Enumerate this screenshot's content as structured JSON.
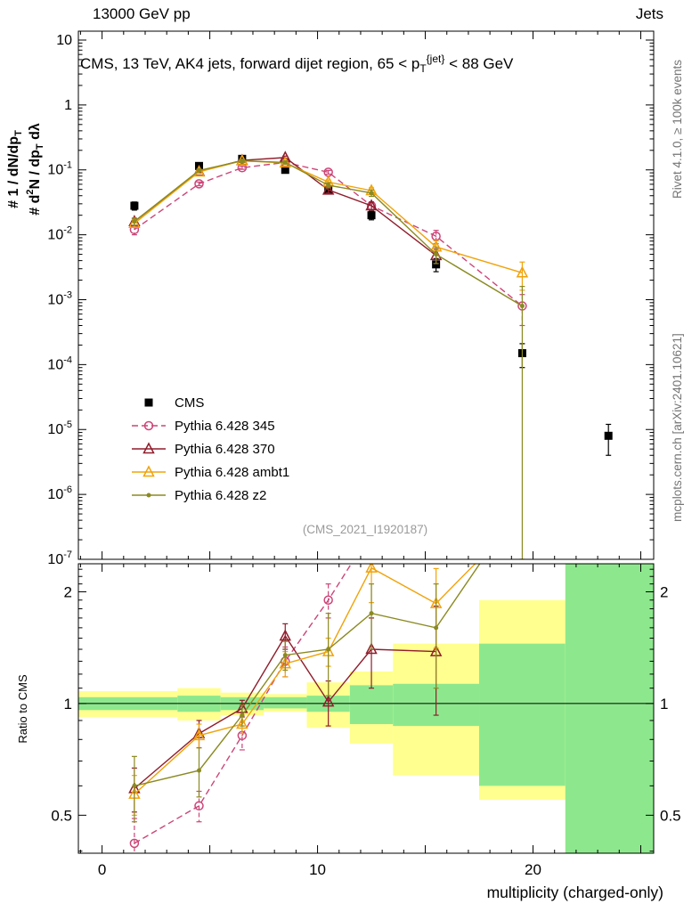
{
  "chart_data": {
    "type": "line",
    "header": {
      "left": "13000 GeV pp",
      "right": "Jets"
    },
    "title": [
      {
        "t": "CMS, 13 TeV, AK4 jets, forward dijet region, 65 < p"
      },
      {
        "t": "T",
        "style": "sub"
      },
      {
        "t": "{jet}",
        "style": "sup"
      },
      {
        "t": " < 88 GeV"
      }
    ],
    "watermark": "(CMS_2021_I1920187)",
    "side_labels": {
      "top_right": "Rivet 4.1.0, ≥ 100k events",
      "bottom_right": "mcplots.cern.ch [arXiv:2401.10621]"
    },
    "xlabel": "multiplicity (charged-only)",
    "ylabel_ratio": "Ratio to CMS",
    "ylabel_main": {
      "col1": [
        {
          "t": "# 1 / dN/dp"
        },
        {
          "t": "T",
          "style": "sub"
        }
      ],
      "col2": [
        {
          "t": "# d"
        },
        {
          "t": "2",
          "style": "sup"
        },
        {
          "t": "N / dp"
        },
        {
          "t": "T",
          "style": "sub"
        },
        {
          "t": " dλ"
        }
      ]
    },
    "xlim": [
      -1.1,
      25.6
    ],
    "x_major_ticks": [
      0,
      10,
      20
    ],
    "main": {
      "ylim_exp": [
        -7,
        1.137
      ],
      "series": [
        {
          "name": "CMS",
          "color": "#000000",
          "marker": "square",
          "filled": true,
          "line": "none",
          "x": [
            1.5,
            4.5,
            6.5,
            8.5,
            10.5,
            12.5,
            15.5,
            19.5,
            23.5
          ],
          "y": [
            0.028,
            0.115,
            0.148,
            0.1,
            0.048,
            0.02,
            0.0035,
            0.00015,
            8e-06
          ],
          "err": [
            0.004,
            0.01,
            0.012,
            0.008,
            0.005,
            0.003,
            0.0008,
            6e-05,
            4e-06
          ]
        },
        {
          "name": "Pythia 6.428 345",
          "color": "#cc4577",
          "marker": "circle",
          "filled": false,
          "line": "dash",
          "x": [
            1.5,
            4.5,
            6.5,
            8.5,
            10.5,
            12.5,
            15.5,
            19.5
          ],
          "y": [
            0.012,
            0.061,
            0.108,
            0.13,
            0.092,
            0.028,
            0.0095,
            0.0008
          ],
          "err": [
            0.002,
            0.004,
            0.006,
            0.007,
            0.006,
            0.004,
            0.0022,
            0.0004
          ]
        },
        {
          "name": "Pythia 6.428 370",
          "color": "#8f1d2c",
          "marker": "triangle",
          "filled": false,
          "line": "solid",
          "x": [
            1.5,
            4.5,
            6.5,
            8.5,
            10.5,
            12.5,
            15.5
          ],
          "y": [
            0.016,
            0.095,
            0.14,
            0.155,
            0.049,
            0.028,
            0.0048
          ],
          "err": [
            0.002,
            0.005,
            0.007,
            0.008,
            0.005,
            0.004,
            0.0012
          ]
        },
        {
          "name": "Pythia 6.428 ambt1",
          "color": "#f0a30a",
          "marker": "triangle",
          "filled": false,
          "line": "solid",
          "x": [
            1.5,
            4.5,
            6.5,
            8.5,
            10.5,
            12.5,
            15.5,
            19.5
          ],
          "y": [
            0.015,
            0.093,
            0.138,
            0.128,
            0.065,
            0.048,
            0.0065,
            0.0026
          ],
          "err": [
            0.002,
            0.005,
            0.007,
            0.007,
            0.005,
            0.005,
            0.0016,
            0.0012
          ]
        },
        {
          "name": "Pythia 6.428 z2",
          "color": "#8a8a22",
          "marker": "dot",
          "filled": true,
          "line": "solid",
          "x": [
            1.5,
            4.5,
            6.5,
            8.5,
            10.5,
            12.5,
            15.5,
            19.5
          ],
          "y": [
            0.016,
            0.098,
            0.138,
            0.13,
            0.058,
            0.044,
            0.005,
            0.0008
          ],
          "err": [
            0.002,
            0.005,
            0.007,
            0.007,
            0.005,
            0.005,
            0.0014,
            0.0007999
          ]
        }
      ]
    },
    "ratio": {
      "ylim": [
        0.395,
        2.38
      ],
      "y_major_ticks": [
        0.5,
        1,
        2
      ],
      "band_colors": {
        "yellow": "#ffff8f",
        "green": "#8de88d"
      },
      "bands": [
        {
          "x0": -1.1,
          "x1": 3.5,
          "yellow": [
            0.92,
            1.08
          ],
          "green": [
            0.96,
            1.04
          ]
        },
        {
          "x0": 3.5,
          "x1": 5.5,
          "yellow": [
            0.9,
            1.1
          ],
          "green": [
            0.95,
            1.05
          ]
        },
        {
          "x0": 5.5,
          "x1": 7.5,
          "yellow": [
            0.93,
            1.07
          ],
          "green": [
            0.96,
            1.04
          ]
        },
        {
          "x0": 7.5,
          "x1": 9.5,
          "yellow": [
            0.95,
            1.06
          ],
          "green": [
            0.97,
            1.04
          ]
        },
        {
          "x0": 9.5,
          "x1": 11.5,
          "yellow": [
            0.86,
            1.14
          ],
          "green": [
            0.95,
            1.05
          ]
        },
        {
          "x0": 11.5,
          "x1": 13.5,
          "yellow": [
            0.78,
            1.22
          ],
          "green": [
            0.88,
            1.12
          ]
        },
        {
          "x0": 13.5,
          "x1": 17.5,
          "yellow": [
            0.64,
            1.45
          ],
          "green": [
            0.87,
            1.13
          ]
        },
        {
          "x0": 17.5,
          "x1": 21.5,
          "yellow": [
            0.55,
            1.9
          ],
          "green": [
            0.6,
            1.45
          ]
        },
        {
          "x0": 21.5,
          "x1": 25.6,
          "yellow": [
            0.395,
            2.38
          ],
          "green": [
            0.395,
            2.38
          ]
        }
      ],
      "series": [
        {
          "name": "Pythia 6.428 345",
          "x": [
            1.5,
            4.5,
            6.5,
            8.5,
            10.5,
            12.5
          ],
          "y": [
            0.42,
            0.53,
            0.82,
            1.3,
            1.9,
            2.9
          ],
          "err": [
            0.07,
            0.05,
            0.07,
            0.12,
            0.2,
            0.5
          ]
        },
        {
          "name": "Pythia 6.428 370",
          "x": [
            1.5,
            4.5,
            6.5,
            8.5,
            10.5,
            12.5,
            15.5
          ],
          "y": [
            0.59,
            0.83,
            0.97,
            1.52,
            1.01,
            1.4,
            1.38
          ],
          "err": [
            0.08,
            0.07,
            0.05,
            0.12,
            0.14,
            0.3,
            0.45
          ]
        },
        {
          "name": "Pythia 6.428 ambt1",
          "x": [
            1.5,
            4.5,
            6.5,
            8.5,
            10.5,
            12.5,
            15.5,
            19.5
          ],
          "y": [
            0.57,
            0.82,
            0.88,
            1.28,
            1.38,
            2.32,
            1.86,
            3.2
          ],
          "err": [
            0.07,
            0.06,
            0.05,
            0.1,
            0.12,
            0.45,
            0.45,
            0.01
          ]
        },
        {
          "name": "Pythia 6.428 z2",
          "x": [
            1.5,
            4.5,
            6.5,
            8.5,
            10.5,
            12.5,
            15.5,
            19.5
          ],
          "y": [
            0.6,
            0.66,
            0.93,
            1.35,
            1.4,
            1.75,
            1.6,
            3.5
          ],
          "err": [
            0.12,
            0.1,
            0.06,
            0.12,
            0.35,
            0.35,
            0.5,
            0.01
          ]
        }
      ]
    },
    "legend": [
      "CMS",
      "Pythia 6.428 345",
      "Pythia 6.428 370",
      "Pythia 6.428 ambt1",
      "Pythia 6.428 z2"
    ]
  }
}
